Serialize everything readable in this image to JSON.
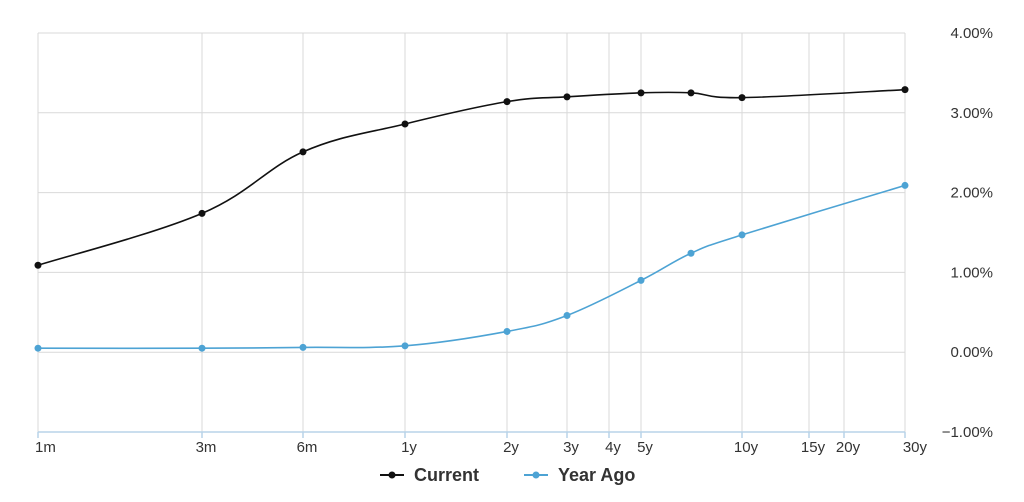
{
  "chart_data": {
    "type": "line",
    "x_tick_labels": [
      "1m",
      "3m",
      "6m",
      "1y",
      "2y",
      "3y",
      "4y",
      "5y",
      "10y",
      "15y",
      "20y",
      "30y"
    ],
    "y_tick_labels": [
      "4.00%",
      "3.00%",
      "2.00%",
      "1.00%",
      "0.00%",
      "−1.00%"
    ],
    "ylim": [
      -1,
      4
    ],
    "y_ticks": [
      4,
      3,
      2,
      1,
      0,
      -1
    ],
    "grid": true,
    "legend_position": "bottom-center",
    "series": [
      {
        "name": "Current",
        "color": "#111111",
        "points": [
          {
            "x": "1m",
            "y": 1.09
          },
          {
            "x": "3m",
            "y": 1.74
          },
          {
            "x": "6m",
            "y": 2.51
          },
          {
            "x": "1y",
            "y": 2.86
          },
          {
            "x": "2y",
            "y": 3.14
          },
          {
            "x": "3y",
            "y": 3.2
          },
          {
            "x": "5y",
            "y": 3.25
          },
          {
            "x": "7y",
            "y": 3.25
          },
          {
            "x": "10y",
            "y": 3.19
          },
          {
            "x": "30y",
            "y": 3.29
          }
        ]
      },
      {
        "name": "Year Ago",
        "color": "#4da3d4",
        "points": [
          {
            "x": "1m",
            "y": 0.05
          },
          {
            "x": "3m",
            "y": 0.05
          },
          {
            "x": "6m",
            "y": 0.06
          },
          {
            "x": "1y",
            "y": 0.08
          },
          {
            "x": "2y",
            "y": 0.26
          },
          {
            "x": "3y",
            "y": 0.46
          },
          {
            "x": "5y",
            "y": 0.9
          },
          {
            "x": "7y",
            "y": 1.24
          },
          {
            "x": "10y",
            "y": 1.47
          },
          {
            "x": "30y",
            "y": 2.09
          }
        ]
      }
    ]
  }
}
